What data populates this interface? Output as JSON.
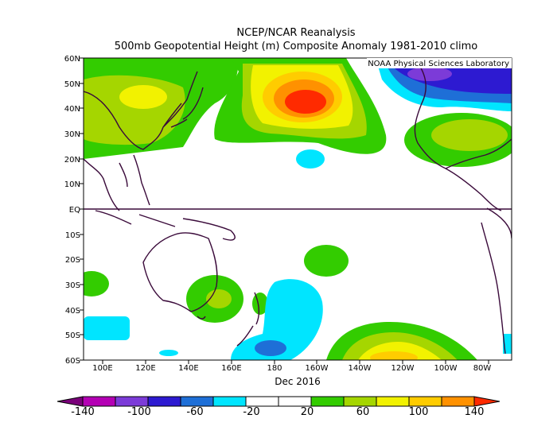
{
  "header": {
    "title": "NCEP/NCAR Reanalysis",
    "subtitle": "500mb Geopotential Height (m) Composite Anomaly 1981-2010 climo",
    "credit": "NOAA Physical Sciences Laboratory"
  },
  "map": {
    "lat_labels": [
      "60N",
      "50N",
      "40N",
      "30N",
      "20N",
      "10N",
      "EQ",
      "10S",
      "20S",
      "30S",
      "40S",
      "50S",
      "60S"
    ],
    "lon_labels": [
      "100E",
      "120E",
      "140E",
      "160E",
      "180",
      "160W",
      "140W",
      "120W",
      "100W",
      "80W"
    ],
    "period_label": "Dec 2016",
    "lat_range": [
      -60,
      60
    ],
    "lon_range": [
      92,
      292
    ]
  },
  "colorbar": {
    "labels": [
      "-140",
      "-100",
      "-60",
      "-20",
      "20",
      "60",
      "100",
      "140"
    ],
    "colors": [
      "#7a007a",
      "#b400b4",
      "#7c3bd8",
      "#2d1ad1",
      "#1e6fd7",
      "#00e5ff",
      "#ffffff",
      "#ffffff",
      "#33cc00",
      "#a5d600",
      "#f2f200",
      "#ffcc00",
      "#ff9100",
      "#ff2a00"
    ]
  },
  "anomaly_colors": {
    "green": "#33cc00",
    "lime": "#a5d600",
    "yellow": "#f2f200",
    "gold": "#ffcc00",
    "orange": "#ff9100",
    "red": "#ff2a00",
    "cyan": "#00e5ff",
    "lightblue": "#1e6fd7",
    "blue": "#2d1ad1",
    "purple": "#7c3bd8",
    "coast": "#3a0a3a"
  }
}
